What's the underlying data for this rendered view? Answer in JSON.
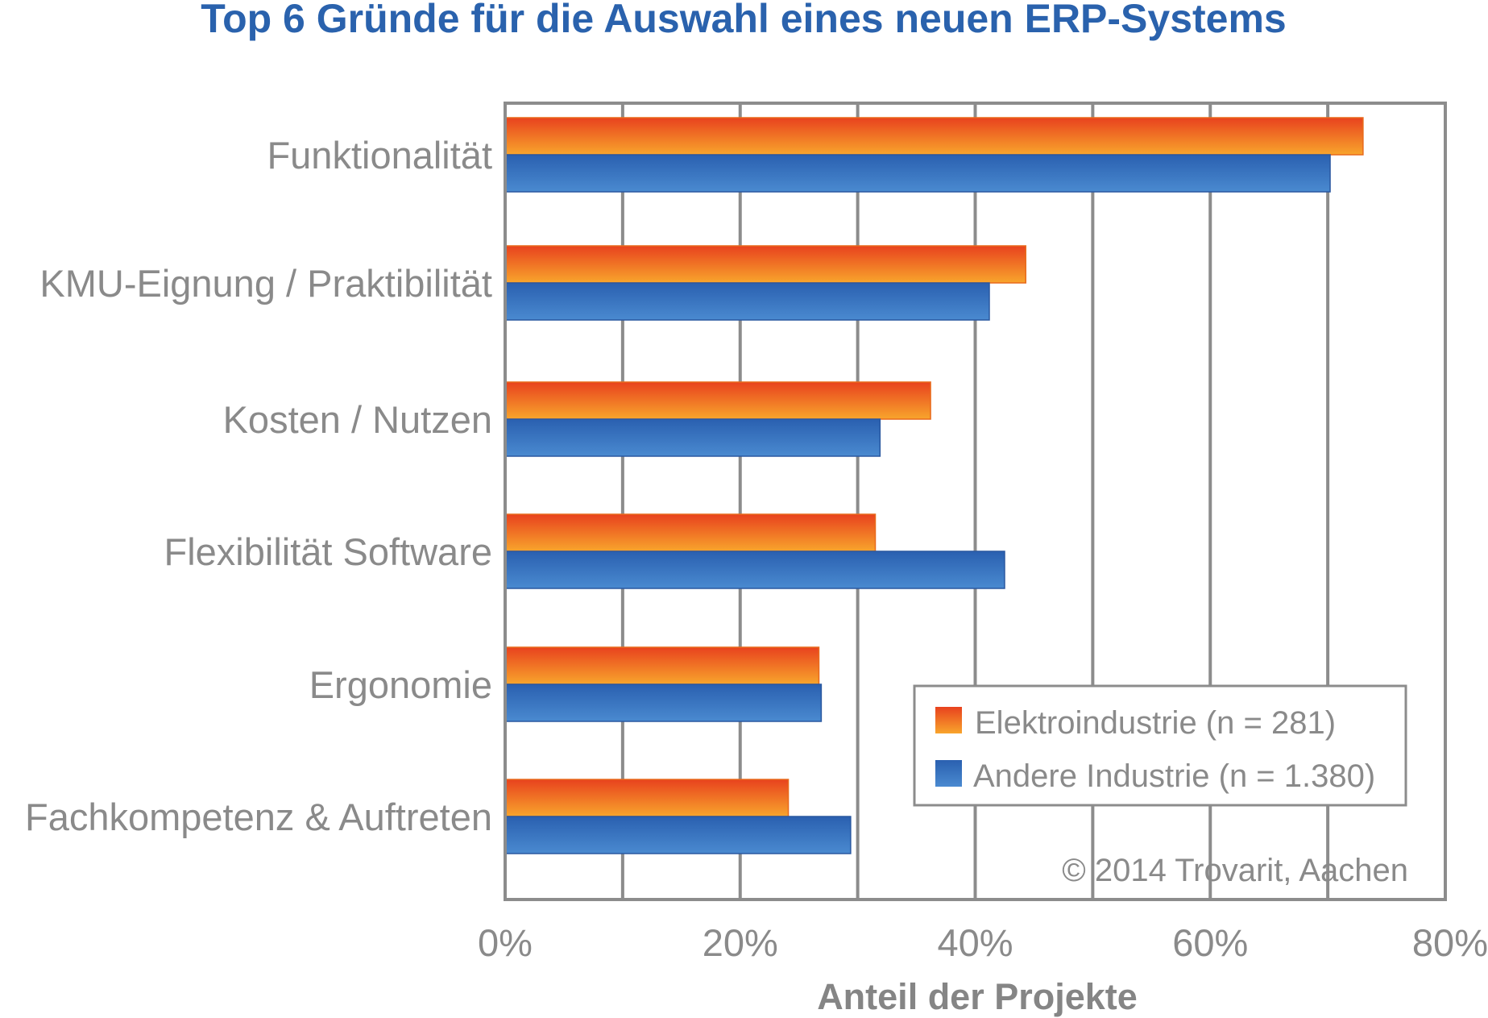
{
  "chart_data": {
    "type": "bar",
    "orientation": "horizontal",
    "title": "Top 6 Gründe für die Auswahl eines neuen ERP-Systems",
    "xlabel": "Anteil der Projekte",
    "ylabel": "",
    "xlim": [
      0,
      80
    ],
    "xticks": [
      0,
      20,
      40,
      60,
      80
    ],
    "xtick_labels": [
      "0%",
      "20%",
      "40%",
      "60%",
      "80%"
    ],
    "grid": true,
    "categories": [
      "Funktionalität",
      "KMU-Eignung / Praktibilität",
      "Kosten / Nutzen",
      "Flexibilität Software",
      "Ergonomie",
      "Fachkompetenz & Auftreten"
    ],
    "series": [
      {
        "name": "Elektroindustrie (n = 281)",
        "values": [
          73,
          44.3,
          36.2,
          31.5,
          26.7,
          24.1
        ]
      },
      {
        "name": "Andere Industrie (n = 1.380)",
        "values": [
          70.2,
          41.2,
          31.9,
          42.5,
          26.9,
          29.4
        ]
      }
    ],
    "legend": {
      "position": "bottom-right"
    },
    "annotation": "© 2014 Trovarit, Aachen"
  },
  "colors": {
    "title": "#2a62ad",
    "text": "#8a8a8a",
    "axis_label": "#858585",
    "grid": "#8c8c8c",
    "frame": "#8c8c8c",
    "series": [
      {
        "top": "#e8421e",
        "bottom": "#f8a52c",
        "stroke": "#e86a1c"
      },
      {
        "top": "#2a60b0",
        "bottom": "#4a8ad0",
        "stroke": "#2a58a0"
      }
    ]
  }
}
